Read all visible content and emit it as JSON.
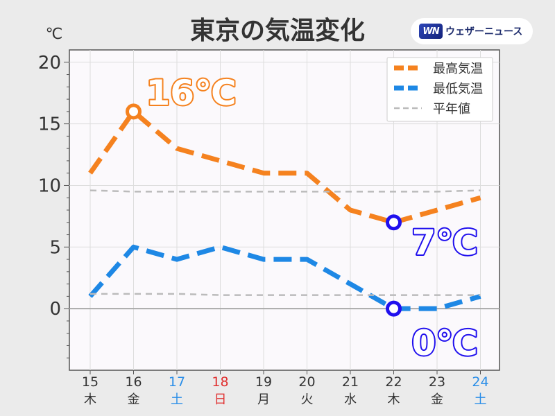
{
  "brand": {
    "logo_text": "WN",
    "name": "ウェザーニュース"
  },
  "chart_data": {
    "type": "line",
    "title": "東京の気温変化",
    "unit_label": "℃",
    "categories": [
      {
        "day": "15",
        "weekday": "木",
        "day_color": "#333333"
      },
      {
        "day": "16",
        "weekday": "金",
        "day_color": "#333333"
      },
      {
        "day": "17",
        "weekday": "土",
        "day_color": "#2a8ee8"
      },
      {
        "day": "18",
        "weekday": "日",
        "day_color": "#e03030"
      },
      {
        "day": "19",
        "weekday": "月",
        "day_color": "#333333"
      },
      {
        "day": "20",
        "weekday": "火",
        "day_color": "#333333"
      },
      {
        "day": "21",
        "weekday": "水",
        "day_color": "#333333"
      },
      {
        "day": "22",
        "weekday": "木",
        "day_color": "#333333"
      },
      {
        "day": "23",
        "weekday": "金",
        "day_color": "#333333"
      },
      {
        "day": "24",
        "weekday": "土",
        "day_color": "#2a8ee8"
      }
    ],
    "ylim": [
      -5,
      21
    ],
    "yticks": [
      0,
      5,
      10,
      15,
      20
    ],
    "grid": true,
    "legend_position": "top-right",
    "series": [
      {
        "name": "最高気温",
        "color": "#f5821f",
        "style": "dashed-thick",
        "values": [
          11,
          16,
          13,
          12,
          11,
          11,
          8,
          7,
          8,
          9
        ]
      },
      {
        "name": "最低気温",
        "color": "#1e88e5",
        "style": "dashed-thick",
        "values": [
          1,
          5,
          4,
          5,
          4,
          4,
          2,
          0,
          0,
          1
        ]
      },
      {
        "name": "平年値",
        "color": "#bbbbbb",
        "style": "dashed-thin",
        "values": [
          9.6,
          9.5,
          9.5,
          9.5,
          9.5,
          9.5,
          9.5,
          9.5,
          9.5,
          9.6
        ]
      },
      {
        "name": "平年値",
        "color": "#bbbbbb",
        "style": "dashed-thin",
        "hide_in_legend": true,
        "values": [
          1.2,
          1.2,
          1.2,
          1.1,
          1.1,
          1.1,
          1.1,
          1.1,
          1.1,
          1.1
        ]
      }
    ],
    "annotations": [
      {
        "text": "16℃",
        "series": 0,
        "index": 1,
        "color": "#f5821f",
        "marker_color": "#f5821f"
      },
      {
        "text": "7℃",
        "series": 0,
        "index": 7,
        "color": "#2010ee",
        "marker_color": "#2010ee"
      },
      {
        "text": "0℃",
        "series": 1,
        "index": 7,
        "color": "#2010ee",
        "marker_color": "#2010ee"
      }
    ]
  }
}
